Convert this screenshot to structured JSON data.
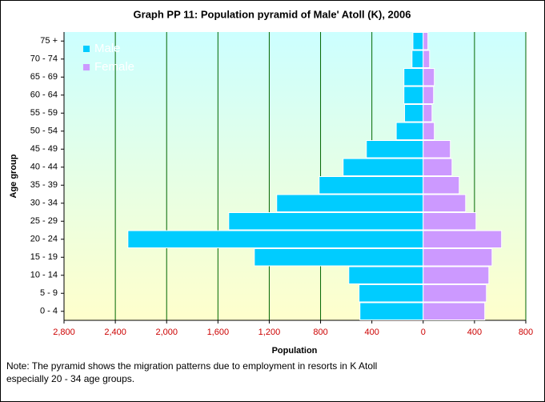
{
  "chart_data": {
    "type": "pyramid",
    "title": "Graph PP 11: Population pyramid of Male' Atoll (K), 2006",
    "x_label": "Population",
    "y_label": "Age group",
    "categories": [
      "0 - 4",
      "5 - 9",
      "10 - 14",
      "15 - 19",
      "20 - 24",
      "25 - 29",
      "30 - 34",
      "35 - 39",
      "40 - 44",
      "45 - 49",
      "50 - 54",
      "55 - 59",
      "60 - 64",
      "65 - 69",
      "70 - 74",
      "75 +"
    ],
    "series": [
      {
        "name": "Male",
        "color": "#00ccff",
        "values": [
          -493,
          -500,
          -580,
          -1316,
          -2302,
          -1516,
          -1142,
          -811,
          -624,
          -443,
          -210,
          -145,
          -150,
          -150,
          -87,
          -80
        ]
      },
      {
        "name": "Female",
        "color": "#cc99ff",
        "values": [
          480,
          493,
          512,
          537,
          611,
          412,
          331,
          281,
          225,
          212,
          87,
          69,
          81,
          87,
          50,
          37
        ]
      }
    ],
    "xlim": [
      -2800,
      800
    ],
    "xticks": [
      {
        "value": -2800,
        "label": "2,800"
      },
      {
        "value": -2400,
        "label": "2,400"
      },
      {
        "value": -2000,
        "label": "2,000"
      },
      {
        "value": -1600,
        "label": "1,600"
      },
      {
        "value": -1200,
        "label": "1,200"
      },
      {
        "value": -800,
        "label": "800"
      },
      {
        "value": -400,
        "label": "400"
      },
      0,
      400,
      800
    ],
    "grid": true,
    "legend": "top-left",
    "note": [
      "Note: The pyramid shows the migration patterns due to employment in resorts in K Atoll",
      "especially    20 - 34 age groups."
    ]
  }
}
